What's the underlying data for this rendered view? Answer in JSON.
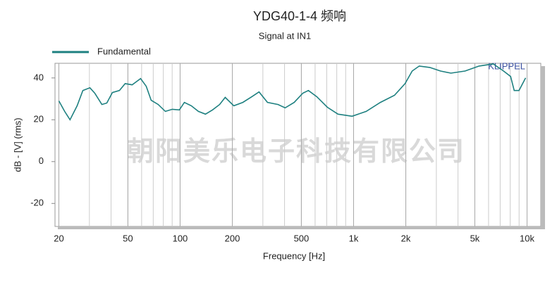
{
  "chart_data": {
    "type": "line",
    "title": "YDG40-1-4 频响",
    "subtitle": "Signal at IN1",
    "x_label": "Frequency [Hz]",
    "y_label": "dB - [V] (rms)",
    "brand": "KLIPPEL",
    "watermark": "朝阳美乐电子科技有限公司",
    "x_scale": "log",
    "xlim": [
      19,
      12000
    ],
    "ylim": [
      -31,
      47
    ],
    "xticks": [
      20,
      50,
      100,
      200,
      500,
      {
        "value": 1000,
        "label": "1k"
      },
      {
        "value": 2000,
        "label": "2k"
      },
      {
        "value": 5000,
        "label": "5k"
      },
      {
        "value": 10000,
        "label": "10k"
      }
    ],
    "yticks": [
      -20,
      0,
      20,
      40
    ],
    "xgrid": [
      20,
      30,
      40,
      50,
      60,
      70,
      80,
      90,
      100,
      200,
      300,
      400,
      500,
      600,
      700,
      800,
      900,
      1000,
      2000,
      3000,
      4000,
      5000,
      6000,
      7000,
      8000,
      9000,
      10000
    ],
    "legend": "top-left",
    "x": [
      20,
      21.6,
      23.2,
      25.5,
      27.5,
      30.2,
      32.2,
      35.4,
      37.8,
      40.7,
      44.7,
      48.2,
      52.9,
      59.2,
      63.8,
      68.1,
      74.8,
      82.2,
      90.2,
      99,
      105.8,
      116,
      127.5,
      140,
      153.8,
      169,
      182,
      204,
      230,
      259,
      285,
      319,
      367,
      403,
      455,
      510,
      549,
      614,
      706,
      813,
      981,
      1183,
      1427,
      1721,
      1981,
      2176,
      2390,
      2750,
      3170,
      3640,
      4390,
      5290,
      6380,
      7320,
      8040,
      8430,
      8990,
      9810
    ],
    "series": [
      {
        "name": "Fundamental",
        "color": "#1e8080",
        "values": [
          29,
          24,
          20,
          26.7,
          34,
          35.3,
          32.7,
          27.3,
          28,
          33,
          34,
          37.3,
          36.7,
          39.7,
          36,
          29.3,
          27.3,
          24,
          25,
          24.7,
          28.3,
          26.7,
          24,
          22.7,
          24.7,
          27.3,
          30.7,
          26.7,
          28.3,
          31,
          33.3,
          28.3,
          27.3,
          25.7,
          28.3,
          32.7,
          34,
          31,
          26,
          22.7,
          21.7,
          24,
          28.3,
          31.7,
          37.3,
          43.3,
          45.7,
          45,
          43.3,
          42.3,
          43.3,
          45.7,
          46.7,
          43.3,
          40.7,
          34,
          34,
          40
        ]
      }
    ]
  }
}
